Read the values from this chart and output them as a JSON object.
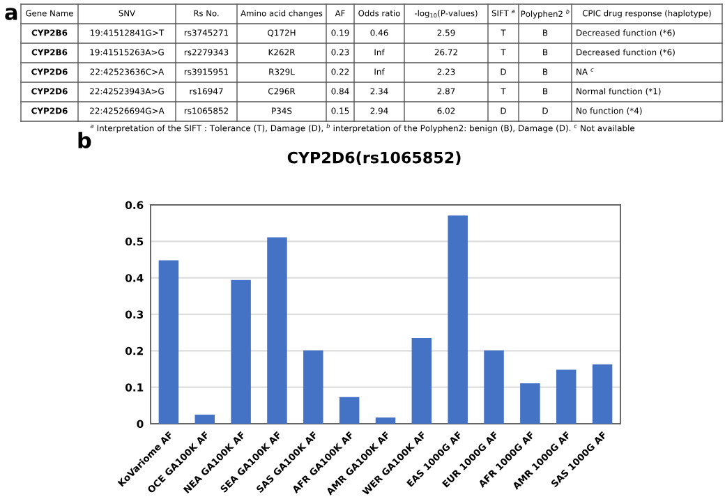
{
  "chart_data": [
    {
      "type": "other",
      "title": "a",
      "categories": [
        "Gene Name",
        "SNV",
        "Rs No.",
        "Amino acid changes",
        "AF",
        "Odds ratio",
        "-log$_{10}$(P-values)",
        "SIFT $^{a}$",
        "Polyphen2 $^{b}$",
        "CPIC drug response (haplotype)"
      ],
      "cell_labels": [
        [
          "CYP2B6",
          "19:41512841G>T",
          "rs3745271",
          "Q172H",
          "0.19",
          "0.46",
          "2.59",
          "T",
          "B",
          "Decreased function (*6)"
        ],
        [
          "CYP2B6",
          "19:41515263A>G",
          "rs2279343",
          "K262R",
          "0.23",
          "Inf",
          "26.72",
          "T",
          "B",
          "Decreased function (*6)"
        ],
        [
          "CYP2D6",
          "22:42523636C>A",
          "rs3915951",
          "R329L",
          "0.22",
          "Inf",
          "2.23",
          "D",
          "B",
          "NA $^{c}$"
        ],
        [
          "CYP2D6",
          "22:42523943A>G",
          "rs16947",
          "C296R",
          "0.84",
          "2.34",
          "2.87",
          "T",
          "B",
          "Normal function (*1)"
        ],
        [
          "CYP2D6",
          "22:42526694G>A",
          "rs1065852",
          "P34S",
          "0.15",
          "2.94",
          "6.02",
          "D",
          "D",
          "No function (*4)"
        ]
      ],
      "annotations": [
        "$^{a}$ Interpretation of the SIFT : Tolerance (T), Damage (D), $^{b}$ interpretation of the Polyphen2: benign (B), Damage (D). $^{c}$ Not available"
      ]
    },
    {
      "type": "bar",
      "title": "CYP2D6(rs1065852)",
      "annotations": [
        "b"
      ],
      "categories": [
        "KoVariome AF",
        "OCE GA100K AF",
        "NEA GA100K AF",
        "SEA GA100K AF",
        "SAS GA100K AF",
        "AFR GA100K AF",
        "AMR GA100K AF",
        "WER GA100K AF",
        "EAS 1000G AF",
        "EUR 1000G AF",
        "AFR 1000G AF",
        "AMR 1000G AF",
        "SAS 1000G AF"
      ],
      "values": [
        0.448,
        0.025,
        0.394,
        0.511,
        0.201,
        0.073,
        0.017,
        0.235,
        0.571,
        0.201,
        0.111,
        0.148,
        0.163
      ],
      "color": "#4472c4",
      "ylim": [
        0,
        0.6
      ],
      "yticks": [
        {
          "value": 0,
          "label": "0"
        },
        0.1,
        0.2,
        0.3,
        0.4,
        0.5,
        0.6
      ],
      "grid": "y"
    }
  ]
}
